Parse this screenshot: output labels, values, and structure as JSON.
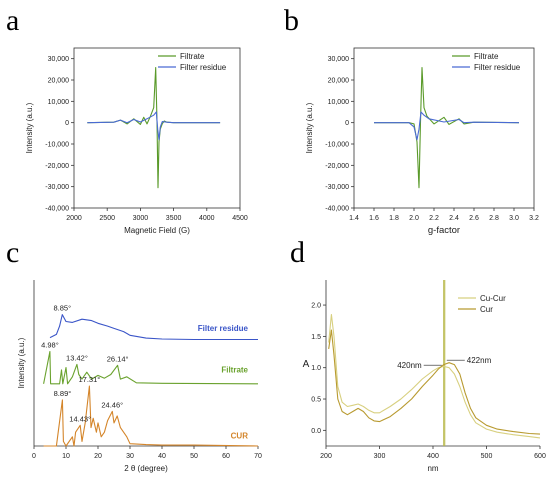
{
  "chart_data": [
    {
      "panel": "a",
      "type": "line",
      "xlabel": "Magnetic Field (G)",
      "ylabel": "Intensity (a.u.)",
      "xlim": [
        2000,
        4500
      ],
      "ylim": [
        -40000,
        35000
      ],
      "xticks": [
        2000,
        2500,
        3000,
        3500,
        4000,
        4500
      ],
      "xtick_labels": [
        "2000",
        "2500",
        "3000",
        "3500",
        "4000",
        "4500"
      ],
      "yticks": [
        -40000,
        -30000,
        -20000,
        -10000,
        0,
        10000,
        20000,
        30000
      ],
      "ytick_labels": [
        "-40,000",
        "-30,000",
        "-20,000",
        "-10,000",
        "0",
        "10,000",
        "20,000",
        "30,000"
      ],
      "legend": "top-right",
      "series": [
        {
          "name": "Filtrate",
          "color": "#5a9a2a",
          "x": [
            2200,
            2600,
            2700,
            2800,
            2900,
            3000,
            3050,
            3100,
            3150,
            3200,
            3230,
            3250,
            3265,
            3280,
            3300,
            3330,
            3360,
            3400,
            3500,
            3700,
            4200
          ],
          "y": [
            0,
            200,
            1200,
            -600,
            1800,
            -800,
            2500,
            -600,
            3000,
            7000,
            25800,
            500,
            -30500,
            -9000,
            -3000,
            -500,
            800,
            200,
            0,
            0,
            0
          ]
        },
        {
          "name": "Filter residue",
          "color": "#4a6ad4",
          "x": [
            2200,
            2600,
            2700,
            2800,
            2900,
            3000,
            3100,
            3200,
            3240,
            3260,
            3280,
            3300,
            3330,
            3400,
            3500,
            4200
          ],
          "y": [
            0,
            200,
            1200,
            0,
            1500,
            300,
            1800,
            3500,
            5000,
            -3000,
            -8000,
            -2000,
            500,
            200,
            0,
            0
          ]
        }
      ]
    },
    {
      "panel": "b",
      "type": "line",
      "xlabel": "g-factor",
      "ylabel": "Intensity (a.u.)",
      "xlim": [
        1.4,
        3.2
      ],
      "ylim": [
        -40000,
        35000
      ],
      "xticks": [
        1.4,
        1.6,
        1.8,
        2.0,
        2.2,
        2.4,
        2.6,
        2.8,
        3.0,
        3.2
      ],
      "xtick_labels": [
        "1.4",
        "1.6",
        "1.8",
        "2.0",
        "2.2",
        "2.4",
        "2.6",
        "2.8",
        "3.0",
        "3.2"
      ],
      "yticks": [
        -40000,
        -30000,
        -20000,
        -10000,
        0,
        10000,
        20000,
        30000
      ],
      "ytick_labels": [
        "-40,000",
        "-30,000",
        "-20,000",
        "-10,000",
        "0",
        "10,000",
        "20,000",
        "30,000"
      ],
      "legend": "top-right",
      "series": [
        {
          "name": "Filtrate",
          "color": "#5a9a2a",
          "x": [
            1.6,
            1.95,
            2.0,
            2.03,
            2.05,
            2.065,
            2.08,
            2.1,
            2.13,
            2.2,
            2.3,
            2.35,
            2.45,
            2.5,
            2.6,
            3.05
          ],
          "y": [
            0,
            0,
            -600,
            -9000,
            -30500,
            500,
            25800,
            7000,
            3000,
            -600,
            2500,
            -800,
            1800,
            -600,
            200,
            0
          ]
        },
        {
          "name": "Filter residue",
          "color": "#4a6ad4",
          "x": [
            1.6,
            1.95,
            2.0,
            2.03,
            2.05,
            2.07,
            2.1,
            2.15,
            2.3,
            2.45,
            2.5,
            2.6,
            3.05
          ],
          "y": [
            0,
            0,
            -2000,
            -8000,
            -3000,
            5000,
            3500,
            1800,
            300,
            1500,
            0,
            200,
            0
          ]
        }
      ]
    },
    {
      "panel": "c",
      "type": "line",
      "xlabel": "2 θ (degree)",
      "ylabel": "Intensity (a.u.)",
      "xlim": [
        0,
        70
      ],
      "ylim": [
        0,
        3.6
      ],
      "xticks": [
        0,
        10,
        20,
        30,
        40,
        50,
        60,
        70
      ],
      "xtick_labels": [
        "0",
        "10",
        "20",
        "30",
        "40",
        "50",
        "60",
        "70"
      ],
      "series": [
        {
          "name": "Filter residue",
          "color": "#3a55c8",
          "offset": 2.3,
          "x": [
            5,
            7,
            8,
            8.85,
            10,
            12,
            15,
            18,
            20,
            23,
            25,
            28,
            30,
            35,
            40,
            50,
            60,
            70
          ],
          "y": [
            0.05,
            0.12,
            0.3,
            0.55,
            0.4,
            0.38,
            0.45,
            0.42,
            0.36,
            0.3,
            0.25,
            0.18,
            0.1,
            0.04,
            0.02,
            0.01,
            0.01,
            0.01
          ]
        },
        {
          "name": "Filtrate",
          "color": "#6aa22e",
          "offset": 1.35,
          "x": [
            3,
            4.98,
            5.2,
            8,
            8.6,
            9,
            10,
            10.5,
            12,
            13.42,
            14,
            15,
            16.5,
            18,
            20,
            22,
            24,
            26.14,
            27,
            29,
            32,
            40,
            70
          ],
          "y": [
            0,
            0.7,
            0,
            0,
            0.3,
            0,
            0.35,
            0,
            0.15,
            0.42,
            0.2,
            0.1,
            0.25,
            0.1,
            0.18,
            0.12,
            0.2,
            0.4,
            0.1,
            0.15,
            0.02,
            0.01,
            0
          ]
        },
        {
          "name": "CUR",
          "color": "#d4852a",
          "offset": 0.0,
          "x": [
            3,
            7,
            8.89,
            9.2,
            10,
            12,
            12.5,
            13,
            14.43,
            15,
            16,
            17.31,
            17.8,
            18.5,
            19.5,
            20,
            21,
            22,
            23,
            24.46,
            25,
            26,
            27,
            28,
            29,
            30,
            35,
            40,
            50,
            70
          ],
          "y": [
            0,
            0,
            1.0,
            0.1,
            0,
            0.2,
            0,
            0.3,
            0.45,
            0.1,
            0.5,
            1.3,
            0.4,
            0.6,
            0.3,
            0.5,
            0.2,
            0.3,
            0.55,
            0.75,
            0.5,
            0.65,
            0.4,
            0.3,
            0.2,
            0.05,
            0.03,
            0.02,
            0.02,
            0
          ]
        }
      ],
      "annotations": [
        {
          "text": "8.85°",
          "series": "Filter residue",
          "x": 8.85
        },
        {
          "text": "4.98°",
          "series": "Filtrate",
          "x": 4.98
        },
        {
          "text": "13.42°",
          "series": "Filtrate",
          "x": 13.42
        },
        {
          "text": "26.14°",
          "series": "Filtrate",
          "x": 26.14
        },
        {
          "text": "8.89°",
          "series": "CUR",
          "x": 8.89
        },
        {
          "text": "17.31°",
          "series": "CUR",
          "x": 17.31
        },
        {
          "text": "14.43°",
          "series": "CUR",
          "x": 14.43
        },
        {
          "text": "24.46°",
          "series": "CUR",
          "x": 24.46
        }
      ]
    },
    {
      "panel": "d",
      "type": "line",
      "xlabel": "nm",
      "ylabel": "A",
      "xlim": [
        200,
        600
      ],
      "ylim": [
        -0.25,
        2.4
      ],
      "xticks": [
        200,
        300,
        400,
        500,
        600
      ],
      "xtick_labels": [
        "200",
        "300",
        "400",
        "500",
        "600"
      ],
      "yticks": [
        0,
        0.5,
        1.0,
        1.5,
        2.0
      ],
      "ytick_labels": [
        "0.0",
        "0.5",
        "1.0",
        "1.5",
        "2.0"
      ],
      "legend": "top-right",
      "vlines": [
        {
          "x": 420,
          "color": "#b8b84a"
        },
        {
          "x": 422,
          "color": "#b8b84a"
        }
      ],
      "series": [
        {
          "name": "Cu-Cur",
          "color": "#d8d080",
          "x": [
            205,
            210,
            215,
            222,
            230,
            240,
            250,
            260,
            270,
            280,
            290,
            300,
            320,
            340,
            360,
            380,
            400,
            410,
            420,
            430,
            440,
            450,
            460,
            470,
            480,
            500,
            520,
            550,
            580,
            600
          ],
          "y": [
            1.4,
            1.85,
            1.5,
            0.7,
            0.45,
            0.38,
            0.4,
            0.42,
            0.38,
            0.32,
            0.28,
            0.28,
            0.38,
            0.5,
            0.65,
            0.82,
            0.95,
            1.0,
            1.02,
            1.0,
            0.9,
            0.7,
            0.45,
            0.25,
            0.12,
            0.02,
            -0.03,
            -0.07,
            -0.1,
            -0.12
          ]
        },
        {
          "name": "Cur",
          "color": "#b89a30",
          "x": [
            205,
            210,
            215,
            222,
            230,
            240,
            250,
            260,
            270,
            280,
            290,
            300,
            320,
            340,
            360,
            380,
            400,
            410,
            420,
            430,
            440,
            450,
            460,
            470,
            480,
            500,
            520,
            550,
            580,
            600
          ],
          "y": [
            1.3,
            1.6,
            1.2,
            0.5,
            0.3,
            0.25,
            0.3,
            0.35,
            0.3,
            0.2,
            0.15,
            0.14,
            0.22,
            0.35,
            0.5,
            0.7,
            0.88,
            0.98,
            1.05,
            1.08,
            1.05,
            0.9,
            0.6,
            0.35,
            0.2,
            0.08,
            0.02,
            -0.02,
            -0.05,
            -0.06
          ]
        }
      ],
      "annotations": [
        {
          "text": "420nm",
          "x": 420
        },
        {
          "text": "422nm",
          "x": 422
        }
      ]
    }
  ],
  "panel_labels": [
    "a",
    "b",
    "c",
    "d"
  ]
}
